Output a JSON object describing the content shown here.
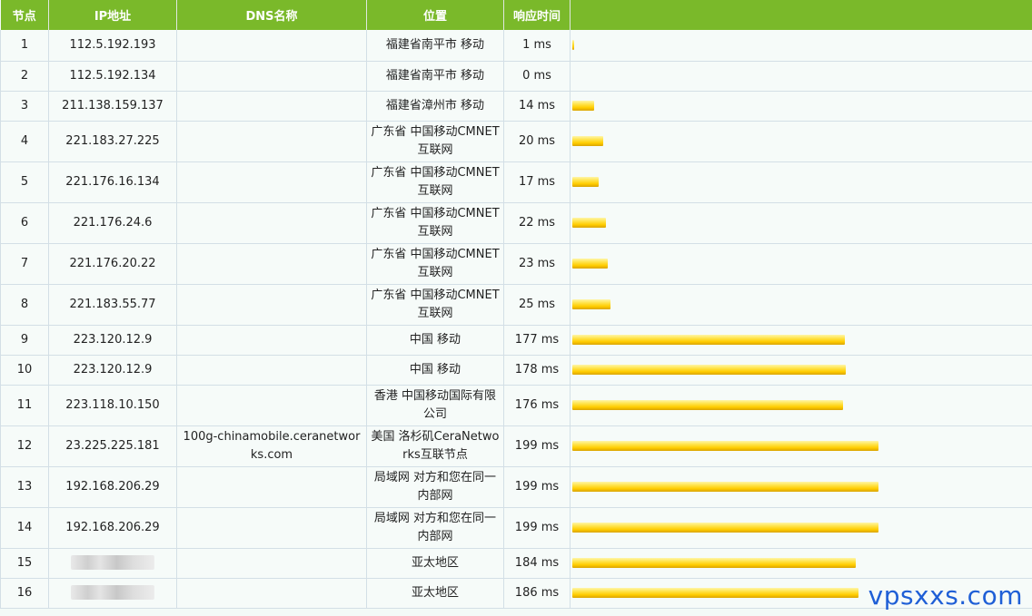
{
  "headers": {
    "hop": "节点",
    "ip": "IP地址",
    "dns": "DNS名称",
    "location": "位置",
    "time": "响应时间"
  },
  "max_ms": 199,
  "rows": [
    {
      "hop": "1",
      "ip": "112.5.192.193",
      "dns": "",
      "location": "福建省南平市 移动",
      "time": "1 ms",
      "ms": 1
    },
    {
      "hop": "2",
      "ip": "112.5.192.134",
      "dns": "",
      "location": "福建省南平市 移动",
      "time": "0 ms",
      "ms": 0
    },
    {
      "hop": "3",
      "ip": "211.138.159.137",
      "dns": "",
      "location": "福建省漳州市 移动",
      "time": "14 ms",
      "ms": 14
    },
    {
      "hop": "4",
      "ip": "221.183.27.225",
      "dns": "",
      "location": "广东省 中国移动CMNET互联网",
      "time": "20 ms",
      "ms": 20
    },
    {
      "hop": "5",
      "ip": "221.176.16.134",
      "dns": "",
      "location": "广东省 中国移动CMNET互联网",
      "time": "17 ms",
      "ms": 17
    },
    {
      "hop": "6",
      "ip": "221.176.24.6",
      "dns": "",
      "location": "广东省 中国移动CMNET互联网",
      "time": "22 ms",
      "ms": 22
    },
    {
      "hop": "7",
      "ip": "221.176.20.22",
      "dns": "",
      "location": "广东省 中国移动CMNET互联网",
      "time": "23 ms",
      "ms": 23
    },
    {
      "hop": "8",
      "ip": "221.183.55.77",
      "dns": "",
      "location": "广东省 中国移动CMNET互联网",
      "time": "25 ms",
      "ms": 25
    },
    {
      "hop": "9",
      "ip": "223.120.12.9",
      "dns": "",
      "location": "中国 移动",
      "time": "177 ms",
      "ms": 177
    },
    {
      "hop": "10",
      "ip": "223.120.12.9",
      "dns": "",
      "location": "中国 移动",
      "time": "178 ms",
      "ms": 178
    },
    {
      "hop": "11",
      "ip": "223.118.10.150",
      "dns": "",
      "location": "香港 中国移动国际有限公司",
      "time": "176 ms",
      "ms": 176
    },
    {
      "hop": "12",
      "ip": "23.225.225.181",
      "dns": "100g-chinamobile.ceranetworks.com",
      "location": "美国 洛杉矶CeraNetworks互联节点",
      "time": "199 ms",
      "ms": 199
    },
    {
      "hop": "13",
      "ip": "192.168.206.29",
      "dns": "",
      "location": "局域网 对方和您在同一内部网",
      "time": "199 ms",
      "ms": 199
    },
    {
      "hop": "14",
      "ip": "192.168.206.29",
      "dns": "",
      "location": "局域网 对方和您在同一内部网",
      "time": "199 ms",
      "ms": 199
    },
    {
      "hop": "15",
      "ip": "",
      "masked": true,
      "dns": "",
      "location": "亚太地区",
      "time": "184 ms",
      "ms": 184
    },
    {
      "hop": "16",
      "ip": "",
      "masked": true,
      "dns": "",
      "location": "亚太地区",
      "time": "186 ms",
      "ms": 186
    }
  ],
  "watermark": "vpsxxs.com"
}
